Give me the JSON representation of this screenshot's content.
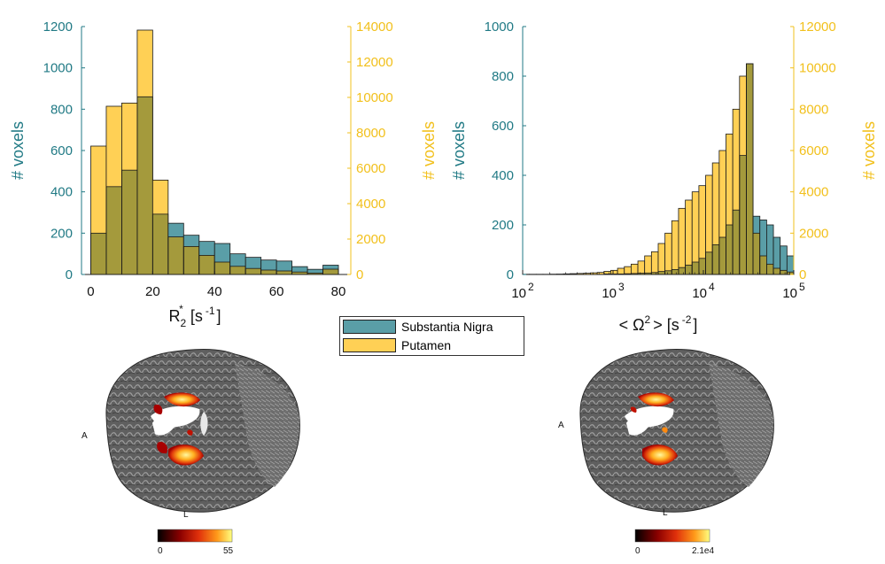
{
  "colors": {
    "teal": "#5a9ea7",
    "teal_axis": "#217a85",
    "gold": "#ffd055",
    "gold_axis": "#f2c01c",
    "overlap": "#a49a3c",
    "edge": "#1a1a1a"
  },
  "legend": {
    "entries": [
      {
        "label": "Substantia Nigra",
        "color": "#5a9ea7"
      },
      {
        "label": "Putamen",
        "color": "#ffd055"
      }
    ]
  },
  "chart_data": [
    {
      "type": "bar",
      "name": "r2star-histogram",
      "xlabel": "R",
      "xlabel_sub": "2",
      "xlabel_sup": "*",
      "xlabel_units": "[s",
      "xlabel_units_sup": "-1",
      "xlabel_close": "]",
      "ylabel_left": "# voxels",
      "ylabel_right": "# voxels",
      "xlim": [
        -3,
        84
      ],
      "ylim_left": [
        0,
        1200
      ],
      "ylim_right": [
        0,
        14000
      ],
      "xticks": [
        "0",
        "20",
        "40",
        "60",
        "80"
      ],
      "xtick_values": [
        0,
        20,
        40,
        60,
        80
      ],
      "yticks_left": [
        "0",
        "200",
        "400",
        "600",
        "800",
        "1000",
        "1200"
      ],
      "yticks_right": [
        "0",
        "2000",
        "4000",
        "6000",
        "8000",
        "10000",
        "12000",
        "14000"
      ],
      "bin_edges": [
        0,
        5,
        10,
        15,
        20,
        25,
        30,
        35,
        40,
        45,
        50,
        55,
        60,
        65,
        70,
        75,
        80
      ],
      "series": [
        {
          "name": "Substantia Nigra",
          "axis": "left",
          "values": [
            200,
            425,
            505,
            860,
            292,
            248,
            190,
            160,
            150,
            100,
            83,
            70,
            65,
            38,
            25,
            45
          ]
        },
        {
          "name": "Putamen",
          "axis": "right",
          "values": [
            7250,
            9500,
            9680,
            13800,
            5330,
            2120,
            1580,
            1080,
            700,
            460,
            340,
            250,
            200,
            140,
            80,
            300
          ]
        }
      ]
    },
    {
      "type": "bar",
      "name": "omega-histogram",
      "xscale": "log",
      "xlabel": "< Ω",
      "xlabel_sup": "2",
      "xlabel_rest": "> [s",
      "xlabel_units_sup": "-2",
      "xlabel_close": "]",
      "ylabel_left": "# voxels",
      "ylabel_right": "# voxels",
      "xlim": [
        100,
        100000
      ],
      "ylim_left": [
        0,
        1000
      ],
      "ylim_right": [
        0,
        12000
      ],
      "xticks": [
        {
          "base": "10",
          "exp": "2",
          "value": 100
        },
        {
          "base": "10",
          "exp": "3",
          "value": 1000
        },
        {
          "base": "10",
          "exp": "4",
          "value": 10000
        },
        {
          "base": "10",
          "exp": "5",
          "value": 100000
        }
      ],
      "yticks_left": [
        "0",
        "200",
        "400",
        "600",
        "800",
        "1000"
      ],
      "yticks_right": [
        "0",
        "2000",
        "4000",
        "6000",
        "8000",
        "10000",
        "12000"
      ],
      "log_bin_start": 2.0,
      "log_bin_width": 0.075,
      "series": [
        {
          "name": "Substantia Nigra",
          "axis": "left",
          "values": [
            0,
            0,
            0,
            0,
            0,
            0,
            0,
            0,
            0,
            0,
            0,
            0,
            2,
            2,
            2,
            3,
            4,
            5,
            6,
            8,
            12,
            15,
            20,
            28,
            38,
            50,
            65,
            90,
            120,
            150,
            200,
            260,
            480,
            850,
            235,
            220,
            200,
            150,
            115,
            75
          ]
        },
        {
          "name": "Putamen",
          "axis": "right",
          "values": [
            10,
            10,
            10,
            10,
            15,
            20,
            30,
            40,
            50,
            60,
            80,
            100,
            150,
            200,
            300,
            380,
            500,
            650,
            900,
            1100,
            1500,
            2000,
            2600,
            3200,
            3600,
            4000,
            4300,
            4800,
            5400,
            6000,
            6800,
            8000,
            9600,
            10200,
            2000,
            900,
            500,
            300,
            200,
            120
          ]
        }
      ]
    }
  ],
  "brain_left": {
    "label_a": "A",
    "label_l": "L",
    "colorbar_min": "0",
    "colorbar_max": "55"
  },
  "brain_right": {
    "label_a": "A",
    "label_l": "L",
    "colorbar_min": "0",
    "colorbar_max": "2.1e4"
  }
}
